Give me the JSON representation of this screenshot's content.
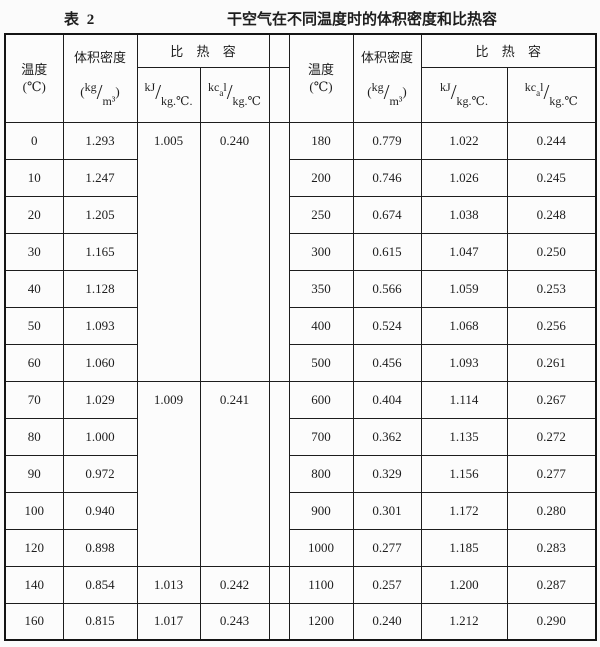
{
  "caption": {
    "table_label": "表 2",
    "title": "干空气在不同温度时的体积密度和比热容"
  },
  "header": {
    "temp_label": "温度",
    "temp_unit": "(℃)",
    "density_label": "体积密度",
    "density_unit": {
      "open": "(",
      "top": "kg",
      "slash": "/",
      "bottom": "m³",
      "close": ")"
    },
    "specific_heat_label": "比 热 容",
    "kj_unit": {
      "top": "kJ",
      "slash": "/",
      "bottom": "kg.℃."
    },
    "kcal_unit": {
      "top_kc": "kc",
      "top_a": "a",
      "top_l": "l",
      "slash": "/",
      "bottom": "kg.℃"
    }
  },
  "left": {
    "temps": [
      "0",
      "10",
      "20",
      "30",
      "40",
      "50",
      "60",
      "70",
      "80",
      "90",
      "100",
      "120",
      "140",
      "160"
    ],
    "densities": [
      "1.293",
      "1.247",
      "1.205",
      "1.165",
      "1.128",
      "1.093",
      "1.060",
      "1.029",
      "1.000",
      "0.972",
      "0.940",
      "0.898",
      "0.854",
      "0.815"
    ],
    "heat_groups": [
      {
        "rows": 7,
        "kj": "1.005",
        "kcal": "0.240"
      },
      {
        "rows": 5,
        "kj": "1.009",
        "kcal": "0.241"
      },
      {
        "rows": 1,
        "kj": "1.013",
        "kcal": "0.242"
      },
      {
        "rows": 1,
        "kj": "1.017",
        "kcal": "0.243"
      }
    ]
  },
  "right": {
    "temps": [
      "180",
      "200",
      "250",
      "300",
      "350",
      "400",
      "500",
      "600",
      "700",
      "800",
      "900",
      "1000",
      "1100",
      "1200"
    ],
    "densities": [
      "0.779",
      "0.746",
      "0.674",
      "0.615",
      "0.566",
      "0.524",
      "0.456",
      "0.404",
      "0.362",
      "0.329",
      "0.301",
      "0.277",
      "0.257",
      "0.240"
    ],
    "kj": [
      "1.022",
      "1.026",
      "1.038",
      "1.047",
      "1.059",
      "1.068",
      "1.093",
      "1.114",
      "1.135",
      "1.156",
      "1.172",
      "1.185",
      "1.200",
      "1.212"
    ],
    "kcal": [
      "0.244",
      "0.245",
      "0.248",
      "0.250",
      "0.253",
      "0.256",
      "0.261",
      "0.267",
      "0.272",
      "0.277",
      "0.280",
      "0.283",
      "0.287",
      "0.290"
    ]
  }
}
